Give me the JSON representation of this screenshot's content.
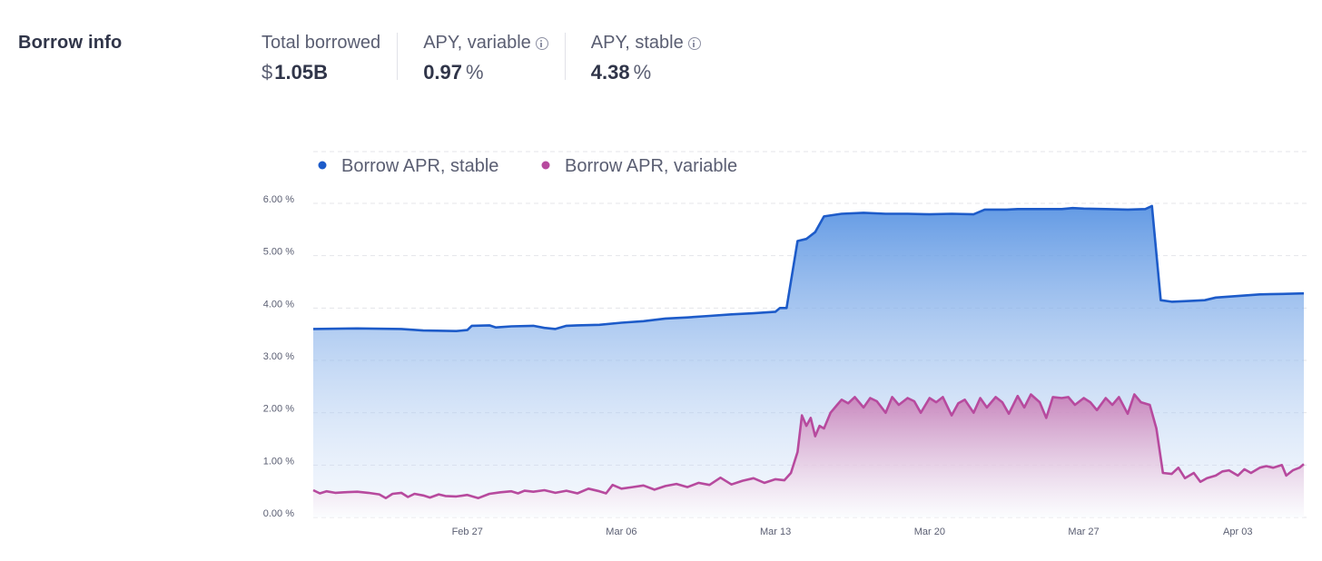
{
  "section_title": "Borrow info",
  "stats": {
    "total_borrowed": {
      "label": "Total borrowed",
      "symbol": "$",
      "value": "1.05B"
    },
    "apy_variable": {
      "label": "APY, variable",
      "value": "0.97",
      "unit": "%",
      "icon": "info-icon"
    },
    "apy_stable": {
      "label": "APY, stable",
      "value": "4.38",
      "unit": "%",
      "icon": "info-icon"
    }
  },
  "chart_data": {
    "type": "area",
    "title": "",
    "xlabel": "",
    "ylabel": "",
    "x_domain_days": [
      0,
      45
    ],
    "x_ticks": [
      {
        "day": 7,
        "label": "Feb 27"
      },
      {
        "day": 14,
        "label": "Mar 06"
      },
      {
        "day": 21,
        "label": "Mar 13"
      },
      {
        "day": 28,
        "label": "Mar 20"
      },
      {
        "day": 35,
        "label": "Mar 27"
      },
      {
        "day": 42,
        "label": "Apr 03"
      }
    ],
    "ylim": [
      0,
      6
    ],
    "y_ticks": [
      {
        "value": 0,
        "label": "0.00 %"
      },
      {
        "value": 1,
        "label": "1.00 %"
      },
      {
        "value": 2,
        "label": "2.00 %"
      },
      {
        "value": 3,
        "label": "3.00 %"
      },
      {
        "value": 4,
        "label": "4.00 %"
      },
      {
        "value": 5,
        "label": "5.00 %"
      },
      {
        "value": 6,
        "label": "6.00 %"
      }
    ],
    "grid": true,
    "legend_position": "top-left",
    "series": [
      {
        "name": "Borrow APR, stable",
        "color": "#1d5bc9",
        "points": [
          [
            0,
            3.6
          ],
          [
            2,
            3.61
          ],
          [
            4,
            3.6
          ],
          [
            5,
            3.57
          ],
          [
            6.5,
            3.56
          ],
          [
            7,
            3.58
          ],
          [
            7.2,
            3.66
          ],
          [
            8,
            3.67
          ],
          [
            8.3,
            3.63
          ],
          [
            9,
            3.65
          ],
          [
            10,
            3.66
          ],
          [
            10.5,
            3.62
          ],
          [
            11,
            3.6
          ],
          [
            11.5,
            3.66
          ],
          [
            12,
            3.67
          ],
          [
            13,
            3.68
          ],
          [
            14,
            3.72
          ],
          [
            15,
            3.75
          ],
          [
            16,
            3.8
          ],
          [
            17,
            3.82
          ],
          [
            18,
            3.85
          ],
          [
            19,
            3.88
          ],
          [
            20,
            3.9
          ],
          [
            21,
            3.93
          ],
          [
            21.2,
            4.0
          ],
          [
            21.5,
            4.0
          ],
          [
            22,
            5.28
          ],
          [
            22.4,
            5.32
          ],
          [
            22.8,
            5.45
          ],
          [
            23.2,
            5.75
          ],
          [
            24,
            5.8
          ],
          [
            25,
            5.82
          ],
          [
            26,
            5.8
          ],
          [
            27,
            5.8
          ],
          [
            28,
            5.79
          ],
          [
            29,
            5.8
          ],
          [
            30,
            5.79
          ],
          [
            30.5,
            5.88
          ],
          [
            31.5,
            5.88
          ],
          [
            32,
            5.89
          ],
          [
            33,
            5.89
          ],
          [
            34,
            5.89
          ],
          [
            34.5,
            5.91
          ],
          [
            35,
            5.9
          ],
          [
            36,
            5.89
          ],
          [
            37,
            5.88
          ],
          [
            37.8,
            5.89
          ],
          [
            38.1,
            5.95
          ],
          [
            38.5,
            4.15
          ],
          [
            39,
            4.12
          ],
          [
            40,
            4.14
          ],
          [
            40.5,
            4.15
          ],
          [
            41,
            4.2
          ],
          [
            42,
            4.23
          ],
          [
            43,
            4.26
          ],
          [
            44,
            4.27
          ],
          [
            45,
            4.28
          ]
        ]
      },
      {
        "name": "Borrow APR, variable",
        "color": "#b74a9e",
        "points": [
          [
            0,
            0.52
          ],
          [
            0.3,
            0.46
          ],
          [
            0.6,
            0.5
          ],
          [
            1,
            0.47
          ],
          [
            1.4,
            0.48
          ],
          [
            2,
            0.49
          ],
          [
            2.5,
            0.47
          ],
          [
            3,
            0.44
          ],
          [
            3.3,
            0.37
          ],
          [
            3.6,
            0.45
          ],
          [
            4,
            0.47
          ],
          [
            4.3,
            0.39
          ],
          [
            4.6,
            0.45
          ],
          [
            5,
            0.42
          ],
          [
            5.3,
            0.38
          ],
          [
            5.7,
            0.44
          ],
          [
            6,
            0.41
          ],
          [
            6.5,
            0.4
          ],
          [
            7,
            0.43
          ],
          [
            7.5,
            0.37
          ],
          [
            8,
            0.45
          ],
          [
            8.5,
            0.48
          ],
          [
            9,
            0.5
          ],
          [
            9.3,
            0.46
          ],
          [
            9.6,
            0.51
          ],
          [
            10,
            0.49
          ],
          [
            10.5,
            0.52
          ],
          [
            11,
            0.47
          ],
          [
            11.5,
            0.51
          ],
          [
            12,
            0.46
          ],
          [
            12.5,
            0.55
          ],
          [
            13,
            0.5
          ],
          [
            13.3,
            0.46
          ],
          [
            13.6,
            0.62
          ],
          [
            14,
            0.55
          ],
          [
            14.5,
            0.58
          ],
          [
            15,
            0.61
          ],
          [
            15.5,
            0.53
          ],
          [
            16,
            0.6
          ],
          [
            16.5,
            0.64
          ],
          [
            17,
            0.58
          ],
          [
            17.5,
            0.66
          ],
          [
            18,
            0.62
          ],
          [
            18.5,
            0.76
          ],
          [
            19,
            0.63
          ],
          [
            19.5,
            0.7
          ],
          [
            20,
            0.75
          ],
          [
            20.5,
            0.66
          ],
          [
            21,
            0.73
          ],
          [
            21.4,
            0.71
          ],
          [
            21.7,
            0.85
          ],
          [
            22,
            1.25
          ],
          [
            22.2,
            1.95
          ],
          [
            22.4,
            1.75
          ],
          [
            22.6,
            1.9
          ],
          [
            22.8,
            1.55
          ],
          [
            23,
            1.75
          ],
          [
            23.2,
            1.7
          ],
          [
            23.5,
            2.0
          ],
          [
            23.8,
            2.15
          ],
          [
            24,
            2.25
          ],
          [
            24.3,
            2.18
          ],
          [
            24.6,
            2.3
          ],
          [
            25,
            2.1
          ],
          [
            25.3,
            2.28
          ],
          [
            25.6,
            2.22
          ],
          [
            26,
            2.0
          ],
          [
            26.3,
            2.3
          ],
          [
            26.6,
            2.15
          ],
          [
            27,
            2.28
          ],
          [
            27.3,
            2.22
          ],
          [
            27.6,
            2.0
          ],
          [
            28,
            2.28
          ],
          [
            28.3,
            2.2
          ],
          [
            28.6,
            2.3
          ],
          [
            29,
            1.95
          ],
          [
            29.3,
            2.18
          ],
          [
            29.6,
            2.25
          ],
          [
            30,
            2.0
          ],
          [
            30.3,
            2.28
          ],
          [
            30.6,
            2.1
          ],
          [
            31,
            2.3
          ],
          [
            31.3,
            2.2
          ],
          [
            31.6,
            1.98
          ],
          [
            32,
            2.32
          ],
          [
            32.3,
            2.1
          ],
          [
            32.6,
            2.35
          ],
          [
            33,
            2.2
          ],
          [
            33.3,
            1.9
          ],
          [
            33.6,
            2.3
          ],
          [
            34,
            2.28
          ],
          [
            34.3,
            2.3
          ],
          [
            34.6,
            2.15
          ],
          [
            35,
            2.28
          ],
          [
            35.3,
            2.2
          ],
          [
            35.6,
            2.05
          ],
          [
            36,
            2.28
          ],
          [
            36.3,
            2.15
          ],
          [
            36.6,
            2.3
          ],
          [
            37,
            1.98
          ],
          [
            37.3,
            2.35
          ],
          [
            37.6,
            2.2
          ],
          [
            38,
            2.15
          ],
          [
            38.3,
            1.7
          ],
          [
            38.6,
            0.85
          ],
          [
            39,
            0.83
          ],
          [
            39.3,
            0.95
          ],
          [
            39.6,
            0.75
          ],
          [
            40,
            0.85
          ],
          [
            40.3,
            0.68
          ],
          [
            40.6,
            0.75
          ],
          [
            41,
            0.8
          ],
          [
            41.3,
            0.88
          ],
          [
            41.6,
            0.9
          ],
          [
            42,
            0.8
          ],
          [
            42.3,
            0.92
          ],
          [
            42.6,
            0.85
          ],
          [
            43,
            0.95
          ],
          [
            43.3,
            0.98
          ],
          [
            43.6,
            0.95
          ],
          [
            44,
            1.0
          ],
          [
            44.2,
            0.8
          ],
          [
            44.5,
            0.9
          ],
          [
            44.8,
            0.95
          ],
          [
            45,
            1.02
          ]
        ]
      }
    ]
  }
}
